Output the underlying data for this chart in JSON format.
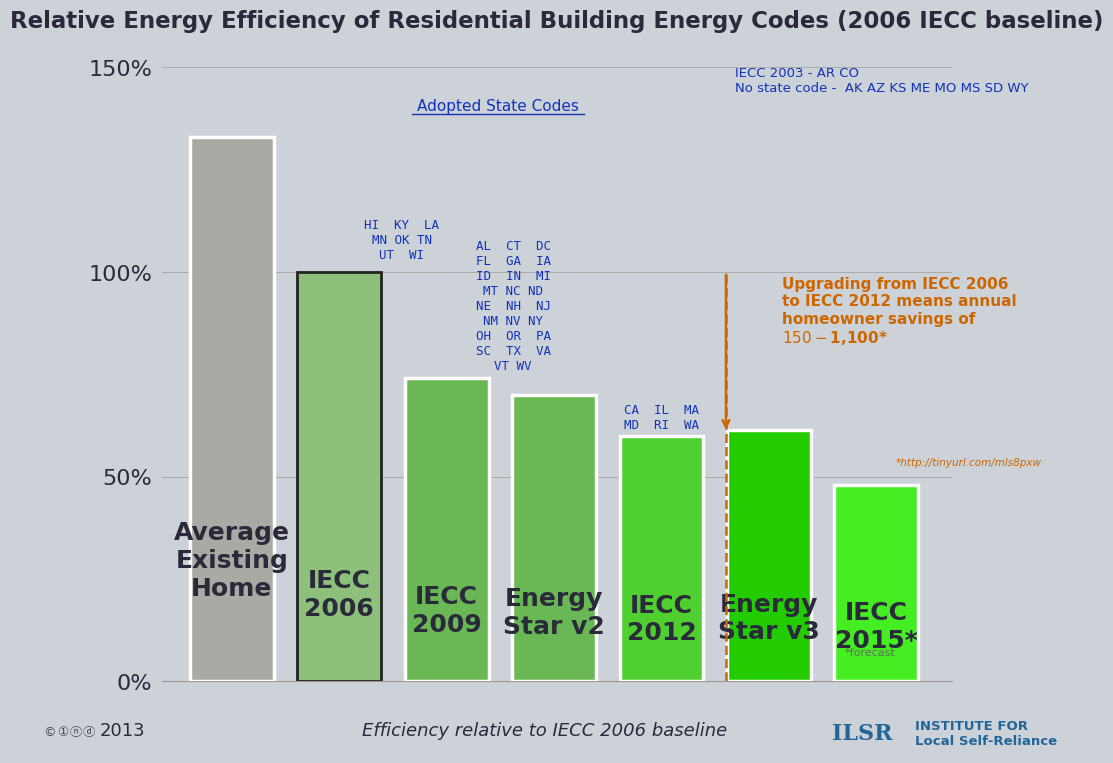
{
  "title": "Relative Energy Efficiency of Residential Building Energy Codes (2006 IECC baseline)",
  "background_color": "#cdd2d8",
  "bar_labels": [
    "Average\nExisting\nHome",
    "IECC\n2006",
    "IECC\n2009",
    "Energy\nStar v2",
    "IECC\n2012",
    "Energy\nStar v3",
    "IECC\n2015*"
  ],
  "bar_values": [
    1.33,
    1.0,
    0.74,
    0.7,
    0.6,
    0.615,
    0.48
  ],
  "bar_colors": [
    "#a8aaa3",
    "#8dc07a",
    "#6ab855",
    "#6ab855",
    "#4fd030",
    "#22cc00",
    "#44ee22"
  ],
  "ytick_labels": [
    "0%",
    "50%",
    "100%",
    "150%"
  ],
  "ytick_vals": [
    0,
    0.5,
    1.0,
    1.5
  ],
  "state_labels_iecc2006": "HI  KY  LA\nMN OK TN\nUT  WI",
  "state_labels_iecc2009": "AL  CT  DC\nFL  GA  IA\nID  IN  MI\nMT NC ND\nNE  NH  NJ\nNM NV NY\nOH  OR  PA\nSC  TX  VA\nVT WV",
  "state_labels_iecc2012": "CA  IL  MA\nMD  RI  WA",
  "adopted_state_label": "Adopted State Codes",
  "iecc2003_label": "IECC 2003 - AR CO\nNo state code -  AK AZ KS ME MO MS SD WY",
  "annotation_orange": "Upgrading from IECC 2006\nto IECC 2012 means annual\nhomeowner savings of\n$150-$1,100*",
  "url_orange": "*http://tinyurl.com/mls8pxw",
  "forecast_text": "*forecast",
  "year": "2013",
  "xlabel_italic": "Efficiency relative to IECC 2006 baseline",
  "ilsr_text": "INSTITUTE FOR\nLocal Self-Reliance",
  "blue_color": "#1133bb",
  "orange_color": "#cc6600",
  "text_dark": "#2a2a3a"
}
